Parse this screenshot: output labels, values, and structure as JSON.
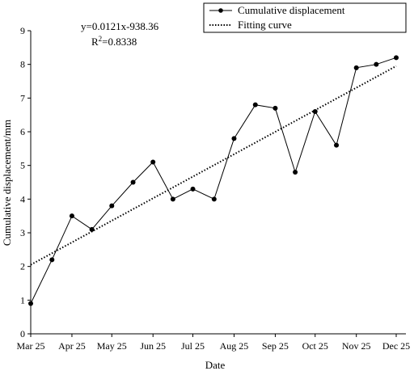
{
  "chart_data": {
    "type": "line",
    "xlabel": "Date",
    "ylabel": "Cumulative displacement/mm",
    "ylim": [
      0,
      9
    ],
    "yticks": [
      0,
      1,
      2,
      3,
      4,
      5,
      6,
      7,
      8,
      9
    ],
    "xlim": [
      "2025-03-25",
      "2025-12-25"
    ],
    "xticks": [
      {
        "date": "2025-03-25",
        "label": "Mar 25"
      },
      {
        "date": "2025-04-25",
        "label": "Apr 25"
      },
      {
        "date": "2025-05-25",
        "label": "May 25"
      },
      {
        "date": "2025-06-25",
        "label": "Jun 25"
      },
      {
        "date": "2025-07-25",
        "label": "Jul 25"
      },
      {
        "date": "2025-08-25",
        "label": "Aug 25"
      },
      {
        "date": "2025-09-25",
        "label": "Sep 25"
      },
      {
        "date": "2025-10-25",
        "label": "Oct 25"
      },
      {
        "date": "2025-11-25",
        "label": "Nov 25"
      },
      {
        "date": "2025-12-25",
        "label": "Dec 25"
      }
    ],
    "grid": false,
    "legend_position": "top-right",
    "series": [
      {
        "name": "Cumulative displacement",
        "style": "solid-line-with-dots",
        "x": [
          "2025-03-25",
          "2025-04-10",
          "2025-04-25",
          "2025-05-10",
          "2025-05-25",
          "2025-06-10",
          "2025-06-25",
          "2025-07-10",
          "2025-07-25",
          "2025-08-10",
          "2025-08-25",
          "2025-09-10",
          "2025-09-25",
          "2025-10-10",
          "2025-10-25",
          "2025-11-10",
          "2025-11-25",
          "2025-12-10",
          "2025-12-25"
        ],
        "values": [
          0.9,
          2.2,
          3.5,
          3.1,
          3.8,
          4.5,
          5.1,
          4.0,
          4.3,
          4.0,
          5.8,
          6.8,
          6.7,
          4.8,
          6.6,
          5.6,
          7.9,
          8.0,
          8.2
        ]
      },
      {
        "name": "Fitting curve",
        "style": "dotted-line",
        "x": [
          "2025-03-25",
          "2025-12-25"
        ],
        "values": [
          2.05,
          7.95
        ]
      }
    ],
    "annotations": {
      "equation": "y=0.0121x-938.36",
      "r2_prefix": "R",
      "r2_exp": "2",
      "r2_value": "=0.8338"
    },
    "colors": {
      "line": "#000000",
      "markers": "#000000",
      "background": "#ffffff"
    }
  }
}
